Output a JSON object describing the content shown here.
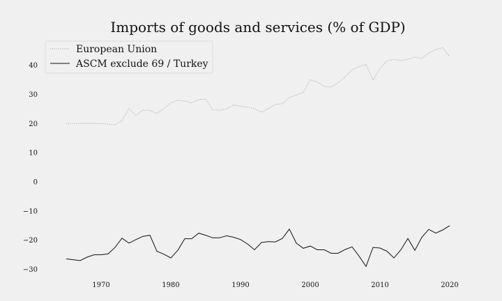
{
  "chart_data": {
    "type": "line",
    "title": "Imports of goods and services (% of GDP)",
    "xlabel": "",
    "ylabel": "",
    "xlim": [
      1962,
      2023
    ],
    "ylim": [
      -32.5,
      48.5
    ],
    "x_ticks": [
      1970,
      1980,
      1990,
      2000,
      2010,
      2020
    ],
    "y_ticks": [
      -30,
      -20,
      -10,
      0,
      10,
      20,
      30,
      40
    ],
    "y_tick_labels": [
      "−30",
      "−20",
      "−10",
      "0",
      "10",
      "20",
      "30",
      "40"
    ],
    "grid": false,
    "legend_position": "top-left",
    "x": [
      1965,
      1966,
      1967,
      1968,
      1969,
      1970,
      1971,
      1972,
      1973,
      1974,
      1975,
      1976,
      1977,
      1978,
      1979,
      1980,
      1981,
      1982,
      1983,
      1984,
      1985,
      1986,
      1987,
      1988,
      1989,
      1990,
      1991,
      1992,
      1993,
      1994,
      1995,
      1996,
      1997,
      1998,
      1999,
      2000,
      2001,
      2002,
      2003,
      2004,
      2005,
      2006,
      2007,
      2008,
      2009,
      2010,
      2011,
      2012,
      2013,
      2014,
      2015,
      2016,
      2017,
      2018,
      2019,
      2020
    ],
    "series": [
      {
        "name": "European Union",
        "color": "#aaaaaa",
        "style": "dotted",
        "values": [
          20.0,
          20.0,
          20.0,
          20.0,
          20.0,
          20.0,
          19.8,
          19.6,
          21.0,
          25.1,
          22.8,
          24.6,
          24.5,
          23.4,
          25.1,
          27.1,
          28.0,
          27.7,
          27.1,
          28.2,
          28.4,
          24.7,
          24.5,
          25.0,
          26.4,
          25.9,
          25.6,
          25.1,
          23.9,
          25.1,
          26.6,
          26.8,
          28.9,
          29.8,
          30.7,
          35.0,
          34.2,
          32.7,
          32.5,
          34.0,
          36.0,
          38.4,
          39.5,
          40.3,
          34.8,
          38.9,
          41.5,
          42.0,
          41.6,
          42.0,
          42.8,
          42.3,
          44.2,
          45.4,
          46.0,
          43.0
        ]
      },
      {
        "name": "ASCM exclude 69 / Turkey",
        "color": "#111111",
        "style": "solid",
        "values": [
          -26.4,
          -26.7,
          -27.0,
          -25.8,
          -25.0,
          -25.0,
          -24.7,
          -22.5,
          -19.3,
          -21.0,
          -19.8,
          -18.7,
          -18.3,
          -23.8,
          -24.8,
          -26.1,
          -23.5,
          -19.5,
          -19.5,
          -17.6,
          -18.3,
          -19.2,
          -19.2,
          -18.5,
          -19.0,
          -19.8,
          -21.3,
          -23.3,
          -20.8,
          -20.5,
          -20.6,
          -19.4,
          -16.2,
          -21.0,
          -22.8,
          -22.0,
          -23.3,
          -23.3,
          -24.5,
          -24.5,
          -23.2,
          -22.3,
          -25.5,
          -29.0,
          -22.5,
          -22.7,
          -23.8,
          -26.1,
          -23.3,
          -19.4,
          -23.5,
          -19.0,
          -16.3,
          -17.6,
          -16.5,
          -15.0
        ]
      }
    ]
  }
}
